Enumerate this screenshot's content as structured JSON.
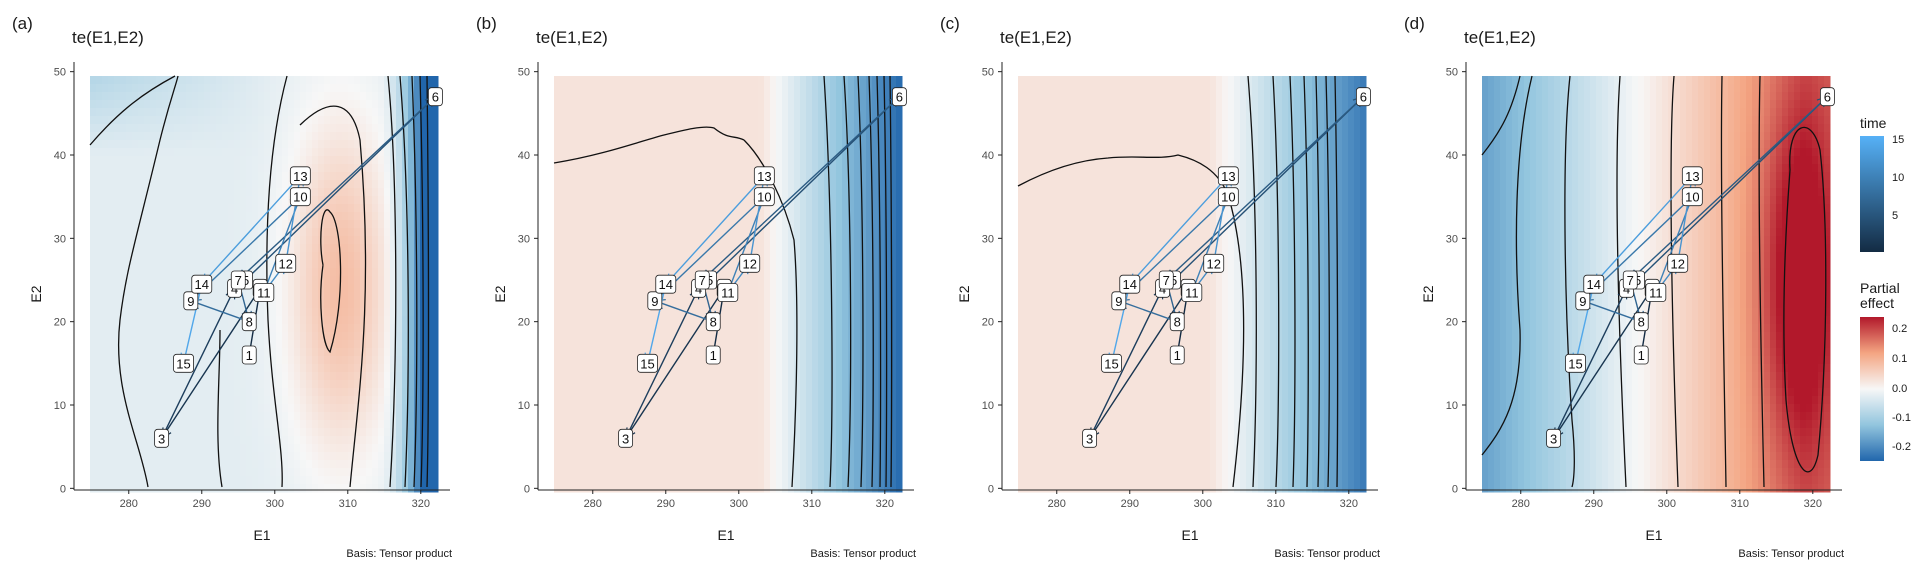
{
  "common": {
    "title": "te(E1,E2)",
    "xlabel": "E1",
    "ylabel": "E2",
    "caption": "Basis: Tensor product",
    "xticks": [
      280,
      290,
      300,
      310,
      320
    ],
    "yticks": [
      0,
      10,
      20,
      30,
      40,
      50
    ]
  },
  "chart_data": [
    {
      "type": "heatmap",
      "panel": "(a)",
      "title": "te(E1,E2)",
      "xlabel": "E1",
      "ylabel": "E2",
      "xlim": [
        272.5,
        324
      ],
      "ylim": [
        -0.2,
        50.2
      ]
    },
    {
      "type": "heatmap",
      "panel": "(b)",
      "title": "te(E1,E2)",
      "xlabel": "E1",
      "ylabel": "E2",
      "xlim": [
        272.5,
        324
      ],
      "ylim": [
        -0.2,
        50.2
      ]
    },
    {
      "type": "heatmap",
      "panel": "(c)",
      "title": "te(E1,E2)",
      "xlabel": "E1",
      "ylabel": "E2",
      "xlim": [
        272.5,
        324
      ],
      "ylim": [
        -0.2,
        50.2
      ]
    },
    {
      "type": "heatmap",
      "panel": "(d)",
      "title": "te(E1,E2)",
      "xlabel": "E1",
      "ylabel": "E2",
      "xlim": [
        272.5,
        324
      ],
      "ylim": [
        -0.2,
        50.2
      ]
    }
  ],
  "trajectory": [
    {
      "label": "1",
      "x": 296.5,
      "y": 16
    },
    {
      "label": "2",
      "x": 298,
      "y": 24
    },
    {
      "label": "3",
      "x": 284.5,
      "y": 6
    },
    {
      "label": "4",
      "x": 294.5,
      "y": 24
    },
    {
      "label": "5",
      "x": 296,
      "y": 25
    },
    {
      "label": "6",
      "x": 322,
      "y": 47
    },
    {
      "label": "7",
      "x": 295,
      "y": 25
    },
    {
      "label": "8",
      "x": 296.5,
      "y": 20
    },
    {
      "label": "9",
      "x": 288.5,
      "y": 22.5
    },
    {
      "label": "10",
      "x": 303.5,
      "y": 35
    },
    {
      "label": "11",
      "x": 298.5,
      "y": 23.5
    },
    {
      "label": "12",
      "x": 301.5,
      "y": 27
    },
    {
      "label": "13",
      "x": 303.5,
      "y": 37.5
    },
    {
      "label": "14",
      "x": 290,
      "y": 24.5
    },
    {
      "label": "15",
      "x": 287.5,
      "y": 15
    }
  ],
  "legend": {
    "time": {
      "title": "time",
      "ticks": [
        "15",
        "10",
        "5"
      ],
      "colors": [
        "#56b1f7",
        "#132b43"
      ]
    },
    "effect": {
      "title": "Partial\neffect",
      "ticks": [
        "0.2",
        "0.1",
        "0.0",
        "-0.1",
        "-0.2"
      ],
      "colors": [
        "#b2182b",
        "#f4a582",
        "#f7f7f7",
        "#92c5de",
        "#2166ac"
      ]
    }
  },
  "panels": [
    {
      "letter": "(a)"
    },
    {
      "letter": "(b)"
    },
    {
      "letter": "(c)"
    },
    {
      "letter": "(d)"
    }
  ]
}
